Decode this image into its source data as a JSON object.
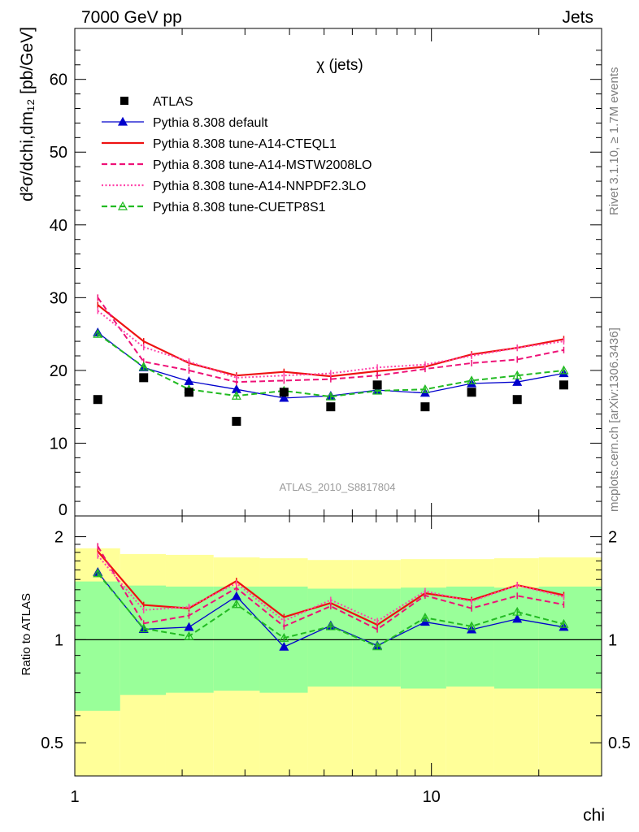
{
  "header": {
    "left": "7000 GeV pp",
    "right": "Jets"
  },
  "side_notes": {
    "rivet": "Rivet 3.1.10, ≥ 1.7M events",
    "mcplots": "mcplots.cern.ch [arXiv:1306.3436]"
  },
  "chart_data": {
    "type": "line",
    "title": "χ (jets)",
    "watermark": "ATLAS_2010_S8817804",
    "xlabel": "chi",
    "xscale": "log",
    "xlim": [
      1,
      30
    ],
    "x_ticks": [
      "1",
      "10"
    ],
    "x": [
      1.16,
      1.56,
      2.09,
      2.84,
      3.86,
      5.22,
      7.05,
      9.6,
      12.96,
      17.4,
      23.5
    ],
    "main_panel": {
      "ylabel": "d²σ/dchi,dm₁₂ [pb/GeV]",
      "ylim": [
        0,
        67
      ],
      "y_ticks": [
        "0",
        "10",
        "20",
        "30",
        "40",
        "50",
        "60"
      ]
    },
    "ratio_panel": {
      "ylabel": "Ratio to ATLAS",
      "yscale": "log",
      "ylim": [
        0.4,
        2.3
      ],
      "y_ticks": [
        "0.5",
        "1",
        "2"
      ],
      "reference": 1,
      "band_x_edges": [
        1.0,
        1.34,
        1.8,
        2.45,
        3.3,
        4.5,
        6.0,
        8.2,
        11.0,
        15.0,
        20.0,
        30.0
      ],
      "band_outer": {
        "color": "#ffff99",
        "lo": [
          0.38,
          0.38,
          0.38,
          0.38,
          0.38,
          0.38,
          0.38,
          0.38,
          0.38,
          0.38,
          0.38
        ],
        "hi": [
          1.85,
          1.78,
          1.77,
          1.74,
          1.73,
          1.71,
          1.71,
          1.72,
          1.72,
          1.73,
          1.74
        ]
      },
      "band_inner": {
        "color": "#99ff99",
        "lo": [
          0.62,
          0.69,
          0.7,
          0.71,
          0.7,
          0.73,
          0.73,
          0.72,
          0.73,
          0.72,
          0.72
        ],
        "hi": [
          1.48,
          1.44,
          1.43,
          1.43,
          1.43,
          1.41,
          1.41,
          1.42,
          1.43,
          1.42,
          1.43
        ]
      }
    },
    "data": {
      "name": "ATLAS",
      "values": [
        16,
        19,
        17,
        13,
        17,
        15,
        18,
        15,
        17,
        16,
        18
      ]
    },
    "series": [
      {
        "name": "Pythia 8.308 default",
        "color": "#0000cc",
        "style": "solid",
        "marker": "triangle-filled",
        "values": [
          25.2,
          20.4,
          18.5,
          17.4,
          16.2,
          16.5,
          17.3,
          16.9,
          18.2,
          18.4,
          19.6
        ]
      },
      {
        "name": "Pythia 8.308 tune-A14-CTEQL1",
        "color": "#ee1111",
        "style": "solid",
        "marker": "none",
        "values": [
          29.0,
          24.0,
          21.0,
          19.3,
          19.8,
          19.2,
          19.9,
          20.5,
          22.2,
          23.1,
          24.3
        ]
      },
      {
        "name": "Pythia 8.308 tune-A14-MSTW2008LO",
        "color": "#ee1177",
        "style": "dashed",
        "marker": "none",
        "values": [
          30.0,
          21.2,
          20.0,
          18.4,
          18.6,
          18.8,
          19.3,
          20.2,
          21.0,
          21.5,
          22.8
        ]
      },
      {
        "name": "Pythia 8.308 tune-A14-NNPDF2.3LO",
        "color": "#ff44aa",
        "style": "dotted",
        "marker": "none",
        "values": [
          28.2,
          23.2,
          21.2,
          19.0,
          19.3,
          19.6,
          20.4,
          20.8,
          22.0,
          23.1,
          24.0
        ]
      },
      {
        "name": "Pythia 8.308 tune-CUETP8S1",
        "color": "#22bb22",
        "style": "dashed",
        "marker": "triangle-open",
        "values": [
          25.0,
          20.5,
          17.4,
          16.5,
          17.2,
          16.4,
          17.2,
          17.4,
          18.6,
          19.3,
          20.0
        ]
      }
    ]
  }
}
